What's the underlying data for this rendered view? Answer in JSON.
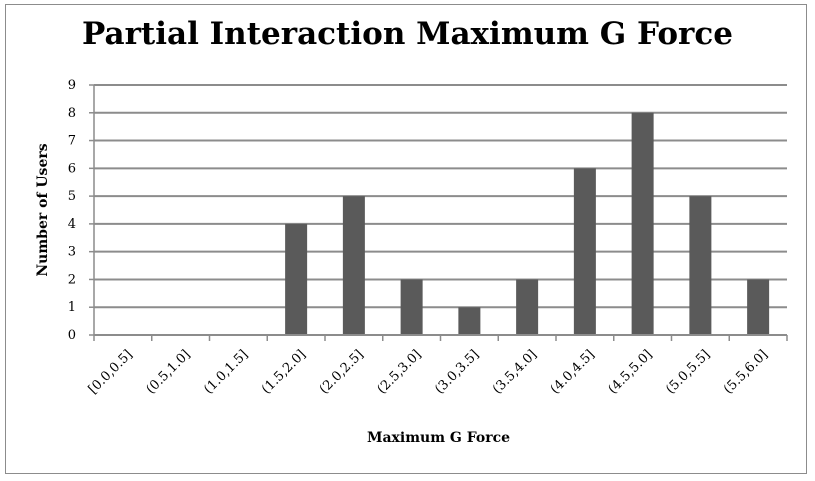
{
  "chart_data": {
    "type": "bar",
    "title": "Partial Interaction Maximum G Force",
    "xlabel": "Maximum G Force",
    "ylabel": "Number of Users",
    "categories": [
      "[0.0,0.5]",
      "(0.5,1.0]",
      "(1.0,1.5]",
      "(1.5,2.0]",
      "(2.0,2.5]",
      "(2.5,3.0]",
      "(3.0,3.5]",
      "(3.5,4.0]",
      "(4.0,4.5]",
      "(4.5,5.0]",
      "(5.0,5.5]",
      "(5.5,6.0]"
    ],
    "values": [
      0,
      0,
      0,
      4,
      5,
      2,
      1,
      2,
      6,
      8,
      5,
      2
    ],
    "ylim": [
      0,
      9
    ],
    "yticks": [
      "0",
      "1",
      "2",
      "3",
      "4",
      "5",
      "6",
      "7",
      "8",
      "9"
    ],
    "grid": true,
    "legend": "none",
    "colors": {
      "bar": "#5a5a5a",
      "grid": "#8c8c8c",
      "axis": "#8c8c8c"
    }
  }
}
